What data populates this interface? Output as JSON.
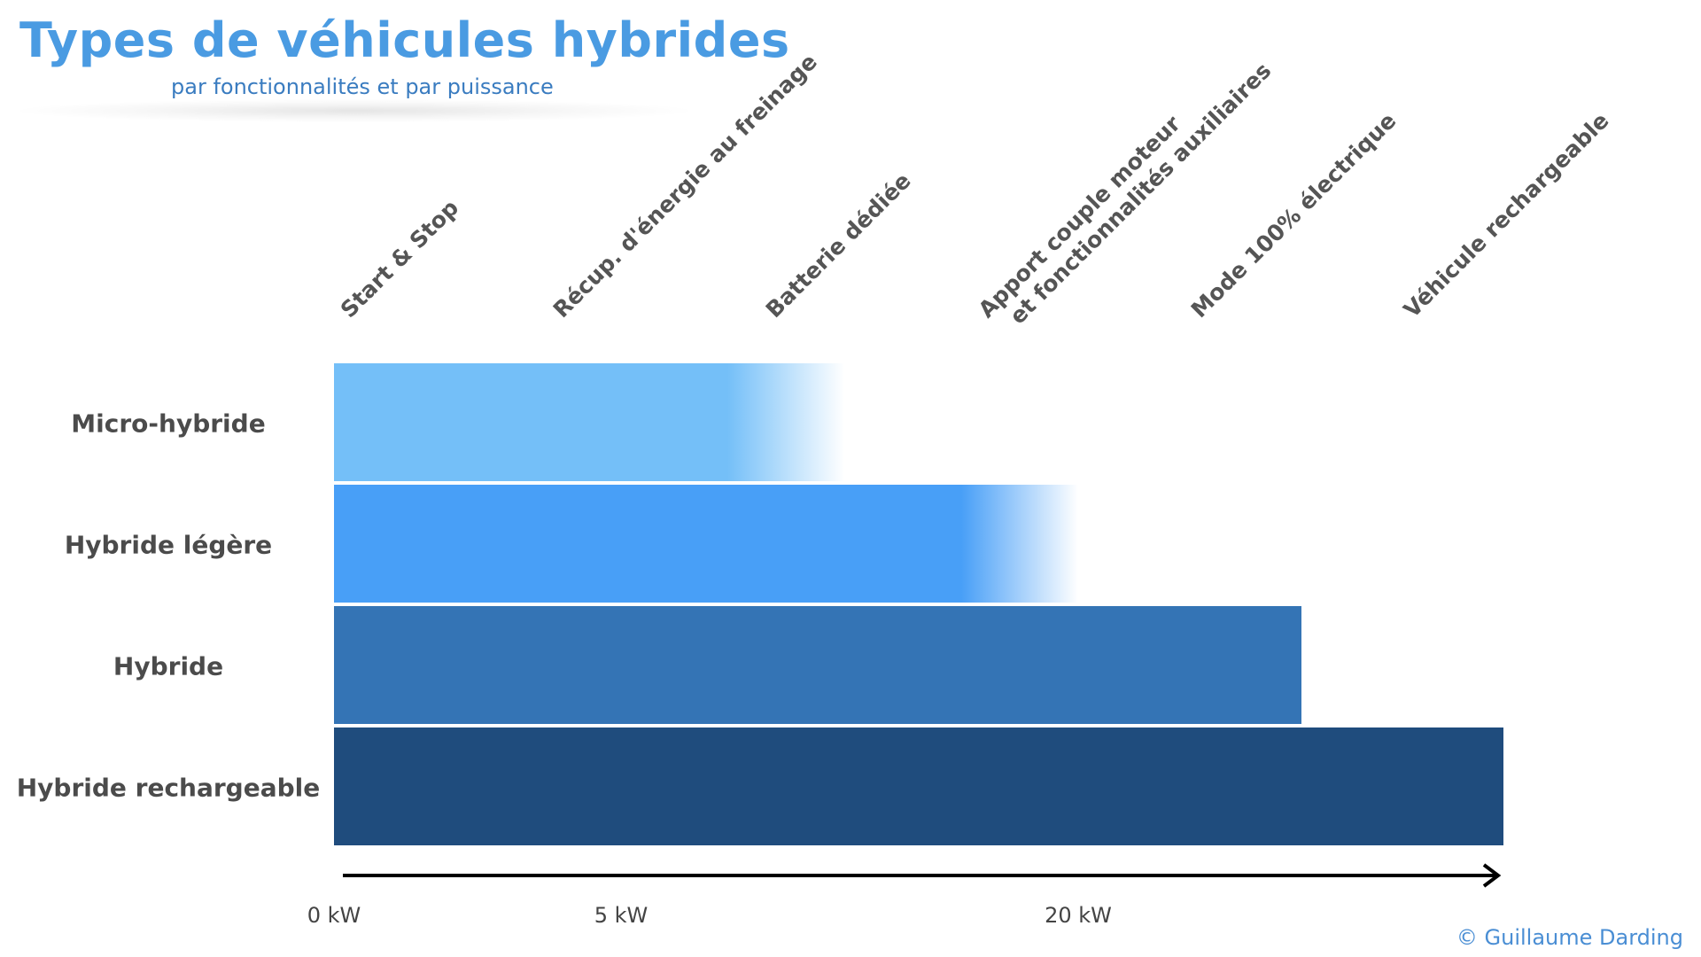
{
  "title": "Types de véhicules hybrides",
  "subtitle": "par fonctionnalités et par puissance",
  "credit": "© Guillaume Darding",
  "chart_data": {
    "type": "bar",
    "orientation": "horizontal",
    "categories": [
      "Micro-hybride",
      "Hybride légère",
      "Hybride",
      "Hybride rechargeable"
    ],
    "features": [
      [
        "Start & Stop"
      ],
      [
        "Récup. d'énergie au freinage"
      ],
      [
        "Batterie dédiée"
      ],
      [
        "Apport couple moteur",
        "et fonctionnalités auxiliaires"
      ],
      [
        "Mode 100% électrique"
      ],
      [
        "Véhicule rechargeable"
      ]
    ],
    "bars": [
      {
        "category": "Micro-hybride",
        "solid_to": 1.85,
        "fade_to": 2.4,
        "color": "#74bff8"
      },
      {
        "category": "Hybride légère",
        "solid_to": 2.95,
        "fade_to": 3.5,
        "color": "#489ff7"
      },
      {
        "category": "Hybride",
        "solid_to": 4.55,
        "fade_to": null,
        "color": "#3474b5"
      },
      {
        "category": "Hybride rechargeable",
        "solid_to": 5.5,
        "fade_to": null,
        "color": "#1f4c7d"
      }
    ],
    "x_ticks": [
      {
        "at": 0,
        "label": "0 kW"
      },
      {
        "at": 1.35,
        "label": "5 kW"
      },
      {
        "at": 3.5,
        "label": "20 kW"
      }
    ],
    "xlim": [
      0,
      5.5
    ],
    "arrow_color": "#000000",
    "grid": false,
    "legend": "none"
  }
}
